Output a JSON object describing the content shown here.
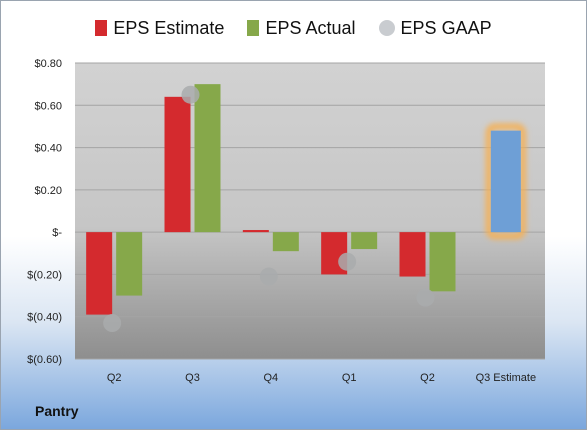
{
  "chart_data": {
    "type": "bar",
    "title": "",
    "categories": [
      "Q2",
      "Q3",
      "Q4",
      "Q1",
      "Q2",
      "Q3 Estimate"
    ],
    "series": [
      {
        "name": "EPS Estimate",
        "color": "#d42a2e",
        "values": [
          -0.39,
          0.64,
          0.01,
          -0.2,
          -0.21,
          null
        ]
      },
      {
        "name": "EPS Actual",
        "color": "#86a84a",
        "values": [
          -0.3,
          0.7,
          -0.09,
          -0.08,
          -0.28,
          null
        ]
      },
      {
        "name": "EPS GAAP",
        "color": "#a9abad",
        "values": [
          -0.43,
          0.65,
          -0.21,
          -0.14,
          -0.31,
          null
        ]
      }
    ],
    "highlight": {
      "category": "Q3 Estimate",
      "value": 0.48,
      "color": "#6e9fd6",
      "glow": "#f5b055"
    },
    "ylim": [
      -0.6,
      0.8
    ],
    "yticks": [
      {
        "value": 0.8,
        "label": "$0.80"
      },
      {
        "value": 0.6,
        "label": "$0.60"
      },
      {
        "value": 0.4,
        "label": "$0.40"
      },
      {
        "value": 0.2,
        "label": "$0.20"
      },
      {
        "value": 0.0,
        "label": "$-"
      },
      {
        "value": -0.2,
        "label": "$(0.20)"
      },
      {
        "value": -0.4,
        "label": "$(0.40)"
      },
      {
        "value": -0.6,
        "label": "$(0.60)"
      }
    ],
    "grid": true,
    "legend_position": "top"
  },
  "company": "Pantry"
}
